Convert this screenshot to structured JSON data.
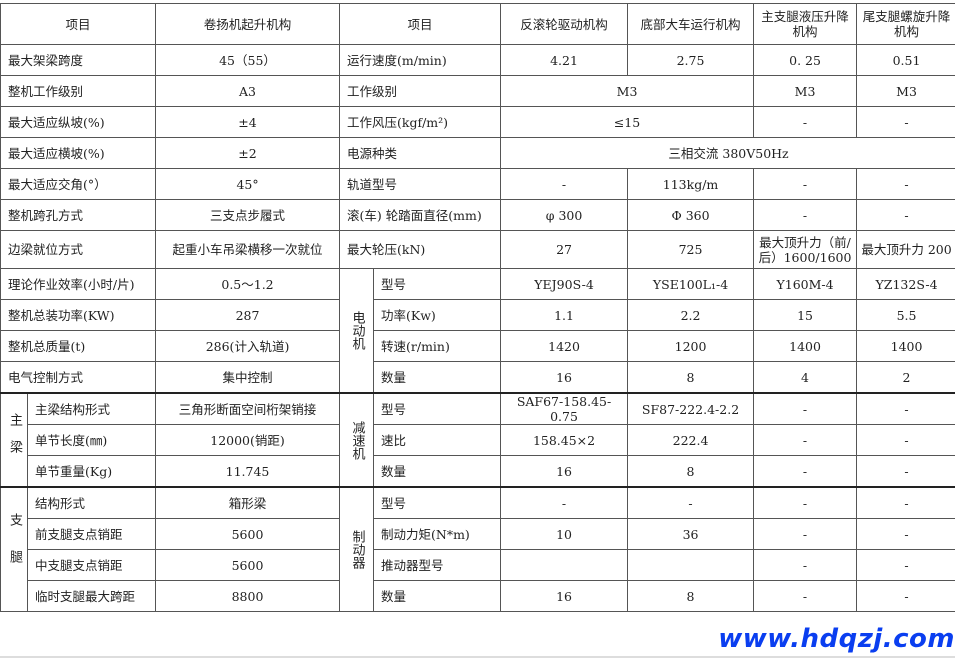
{
  "header": [
    "项目",
    "卷扬机起升机构",
    "项目",
    "反滚轮驱动机构",
    "底部大车运行机构",
    "主支腿液压升降机构",
    "尾支腿螺旋升降机构"
  ],
  "left": [
    [
      "最大架梁跨度",
      "45（55）"
    ],
    [
      "整机工作级别",
      "A3"
    ],
    [
      "最大适应纵坡(%)",
      "±4"
    ],
    [
      "最大适应横坡(%)",
      "±2"
    ],
    [
      "最大适应交角(°）",
      "45°"
    ],
    [
      "整机跨孔方式",
      "三支点步履式"
    ],
    [
      "边梁就位方式",
      "起重小车吊梁横移一次就位"
    ],
    [
      "理论作业效率(小时/片)",
      "0.5～1.2"
    ],
    [
      "整机总装功率(KW)",
      "287"
    ],
    [
      "整机总质量(t)",
      "286(计入轨道)"
    ],
    [
      "电气控制方式",
      "集中控制"
    ]
  ],
  "main_beam": {
    "group": "主梁",
    "rows": [
      [
        "主梁结构形式",
        "三角形断面空间桁架销接"
      ],
      [
        "单节长度(㎜)",
        "12000(销距)"
      ],
      [
        "单节重量(Kg)",
        "11.745"
      ]
    ]
  },
  "legs": {
    "group": "支腿",
    "rows": [
      [
        "结构形式",
        "箱形梁"
      ],
      [
        "前支腿支点销距",
        "5600"
      ],
      [
        "中支腿支点销距",
        "5600"
      ],
      [
        "临时支腿最大跨距",
        "8800"
      ]
    ]
  },
  "right_top": [
    {
      "label": "运行速度(m/min)",
      "values": [
        "4.21",
        "2.75",
        "0. 25",
        "0.51"
      ]
    },
    {
      "label": "工作级别",
      "values": [
        "M3",
        "M3",
        "M3"
      ]
    },
    {
      "label": "工作风压(kgf/m²)",
      "values": [
        "≤15",
        "-",
        "-"
      ]
    },
    {
      "label": "电源种类",
      "values": [
        "三相交流 380V50Hz"
      ]
    },
    {
      "label": "轨道型号",
      "values": [
        "-",
        "113kg/m",
        "-",
        "-"
      ]
    },
    {
      "label": "滚(车) 轮踏面直径(mm)",
      "values": [
        "φ 300",
        "Φ 360",
        "-",
        "-"
      ]
    },
    {
      "label": "最大轮压(kN)",
      "values": [
        "27",
        "725",
        "最大顶升力（前/后）1600/1600",
        "最大顶升力 200"
      ]
    }
  ],
  "motor": {
    "group": "电动机",
    "rows": [
      {
        "label": "型号",
        "values": [
          "YEJ90S-4",
          "YSE100L₁-4",
          "Y160M-4",
          "YZ132S-4"
        ]
      },
      {
        "label": "功率(Kw)",
        "values": [
          "1.1",
          "2.2",
          "15",
          "5.5"
        ]
      },
      {
        "label": "转速(r/min)",
        "values": [
          "1420",
          "1200",
          "1400",
          "1400"
        ]
      },
      {
        "label": "数量",
        "values": [
          "16",
          "8",
          "4",
          "2"
        ]
      }
    ]
  },
  "reducer": {
    "group": "减速机",
    "rows": [
      {
        "label": "型号",
        "values": [
          "SAF67-158.45-0.75",
          "SF87-222.4-2.2",
          "-",
          "-"
        ]
      },
      {
        "label": "速比",
        "values": [
          "158.45×2",
          "222.4",
          "-",
          "-"
        ]
      },
      {
        "label": "数量",
        "values": [
          "16",
          "8",
          "-",
          "-"
        ]
      }
    ]
  },
  "brake": {
    "group": "制动器",
    "rows": [
      {
        "label": "型号",
        "values": [
          "-",
          "-",
          "-",
          "-"
        ]
      },
      {
        "label": "制动力矩(N*m)",
        "values": [
          "10",
          "36",
          "-",
          "-"
        ]
      },
      {
        "label": "推动器型号",
        "values": [
          "",
          "",
          "-",
          "-"
        ]
      },
      {
        "label": "数量",
        "values": [
          "16",
          "8",
          "-",
          "-"
        ]
      }
    ]
  },
  "watermark": "www.hdqzj.com"
}
